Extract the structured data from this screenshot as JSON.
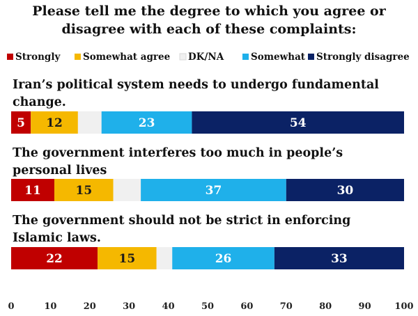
{
  "chart_data": {
    "type": "bar",
    "orientation": "horizontal",
    "stacked": true,
    "title_lines": [
      "Please tell me the degree to which you agree or",
      "disagree with each of these complaints:"
    ],
    "legend": [
      {
        "label": "Strongly",
        "color": "#c00000"
      },
      {
        "label": "Somewhat agree",
        "color": "#f5b800"
      },
      {
        "label": "DK/NA",
        "color": "#f0f0f0"
      },
      {
        "label": "Somewhat",
        "color": "#1fb0ea"
      },
      {
        "label": "Strongly disagree",
        "color": "#0b2265"
      }
    ],
    "categories": [
      [
        "Iran’s political system needs to undergo fundamental",
        "change."
      ],
      [
        "The government interferes too much in people’s",
        "personal lives"
      ],
      [
        "The government should not be strict in enforcing",
        "Islamic laws."
      ]
    ],
    "series": [
      {
        "name": "Strongly",
        "values": [
          5,
          11,
          22
        ]
      },
      {
        "name": "Somewhat agree",
        "values": [
          12,
          15,
          15
        ]
      },
      {
        "name": "DK/NA",
        "values": [
          6,
          7,
          4
        ]
      },
      {
        "name": "Somewhat",
        "values": [
          23,
          37,
          26
        ]
      },
      {
        "name": "Strongly disagree",
        "values": [
          54,
          30,
          33
        ]
      }
    ],
    "value_labels_shown": [
      true,
      true,
      false,
      true,
      true
    ],
    "xlim": [
      0,
      100
    ],
    "xticks": [
      0,
      10,
      20,
      30,
      40,
      50,
      60,
      70,
      80,
      90,
      100
    ],
    "grid": false,
    "legend_position": "top"
  }
}
